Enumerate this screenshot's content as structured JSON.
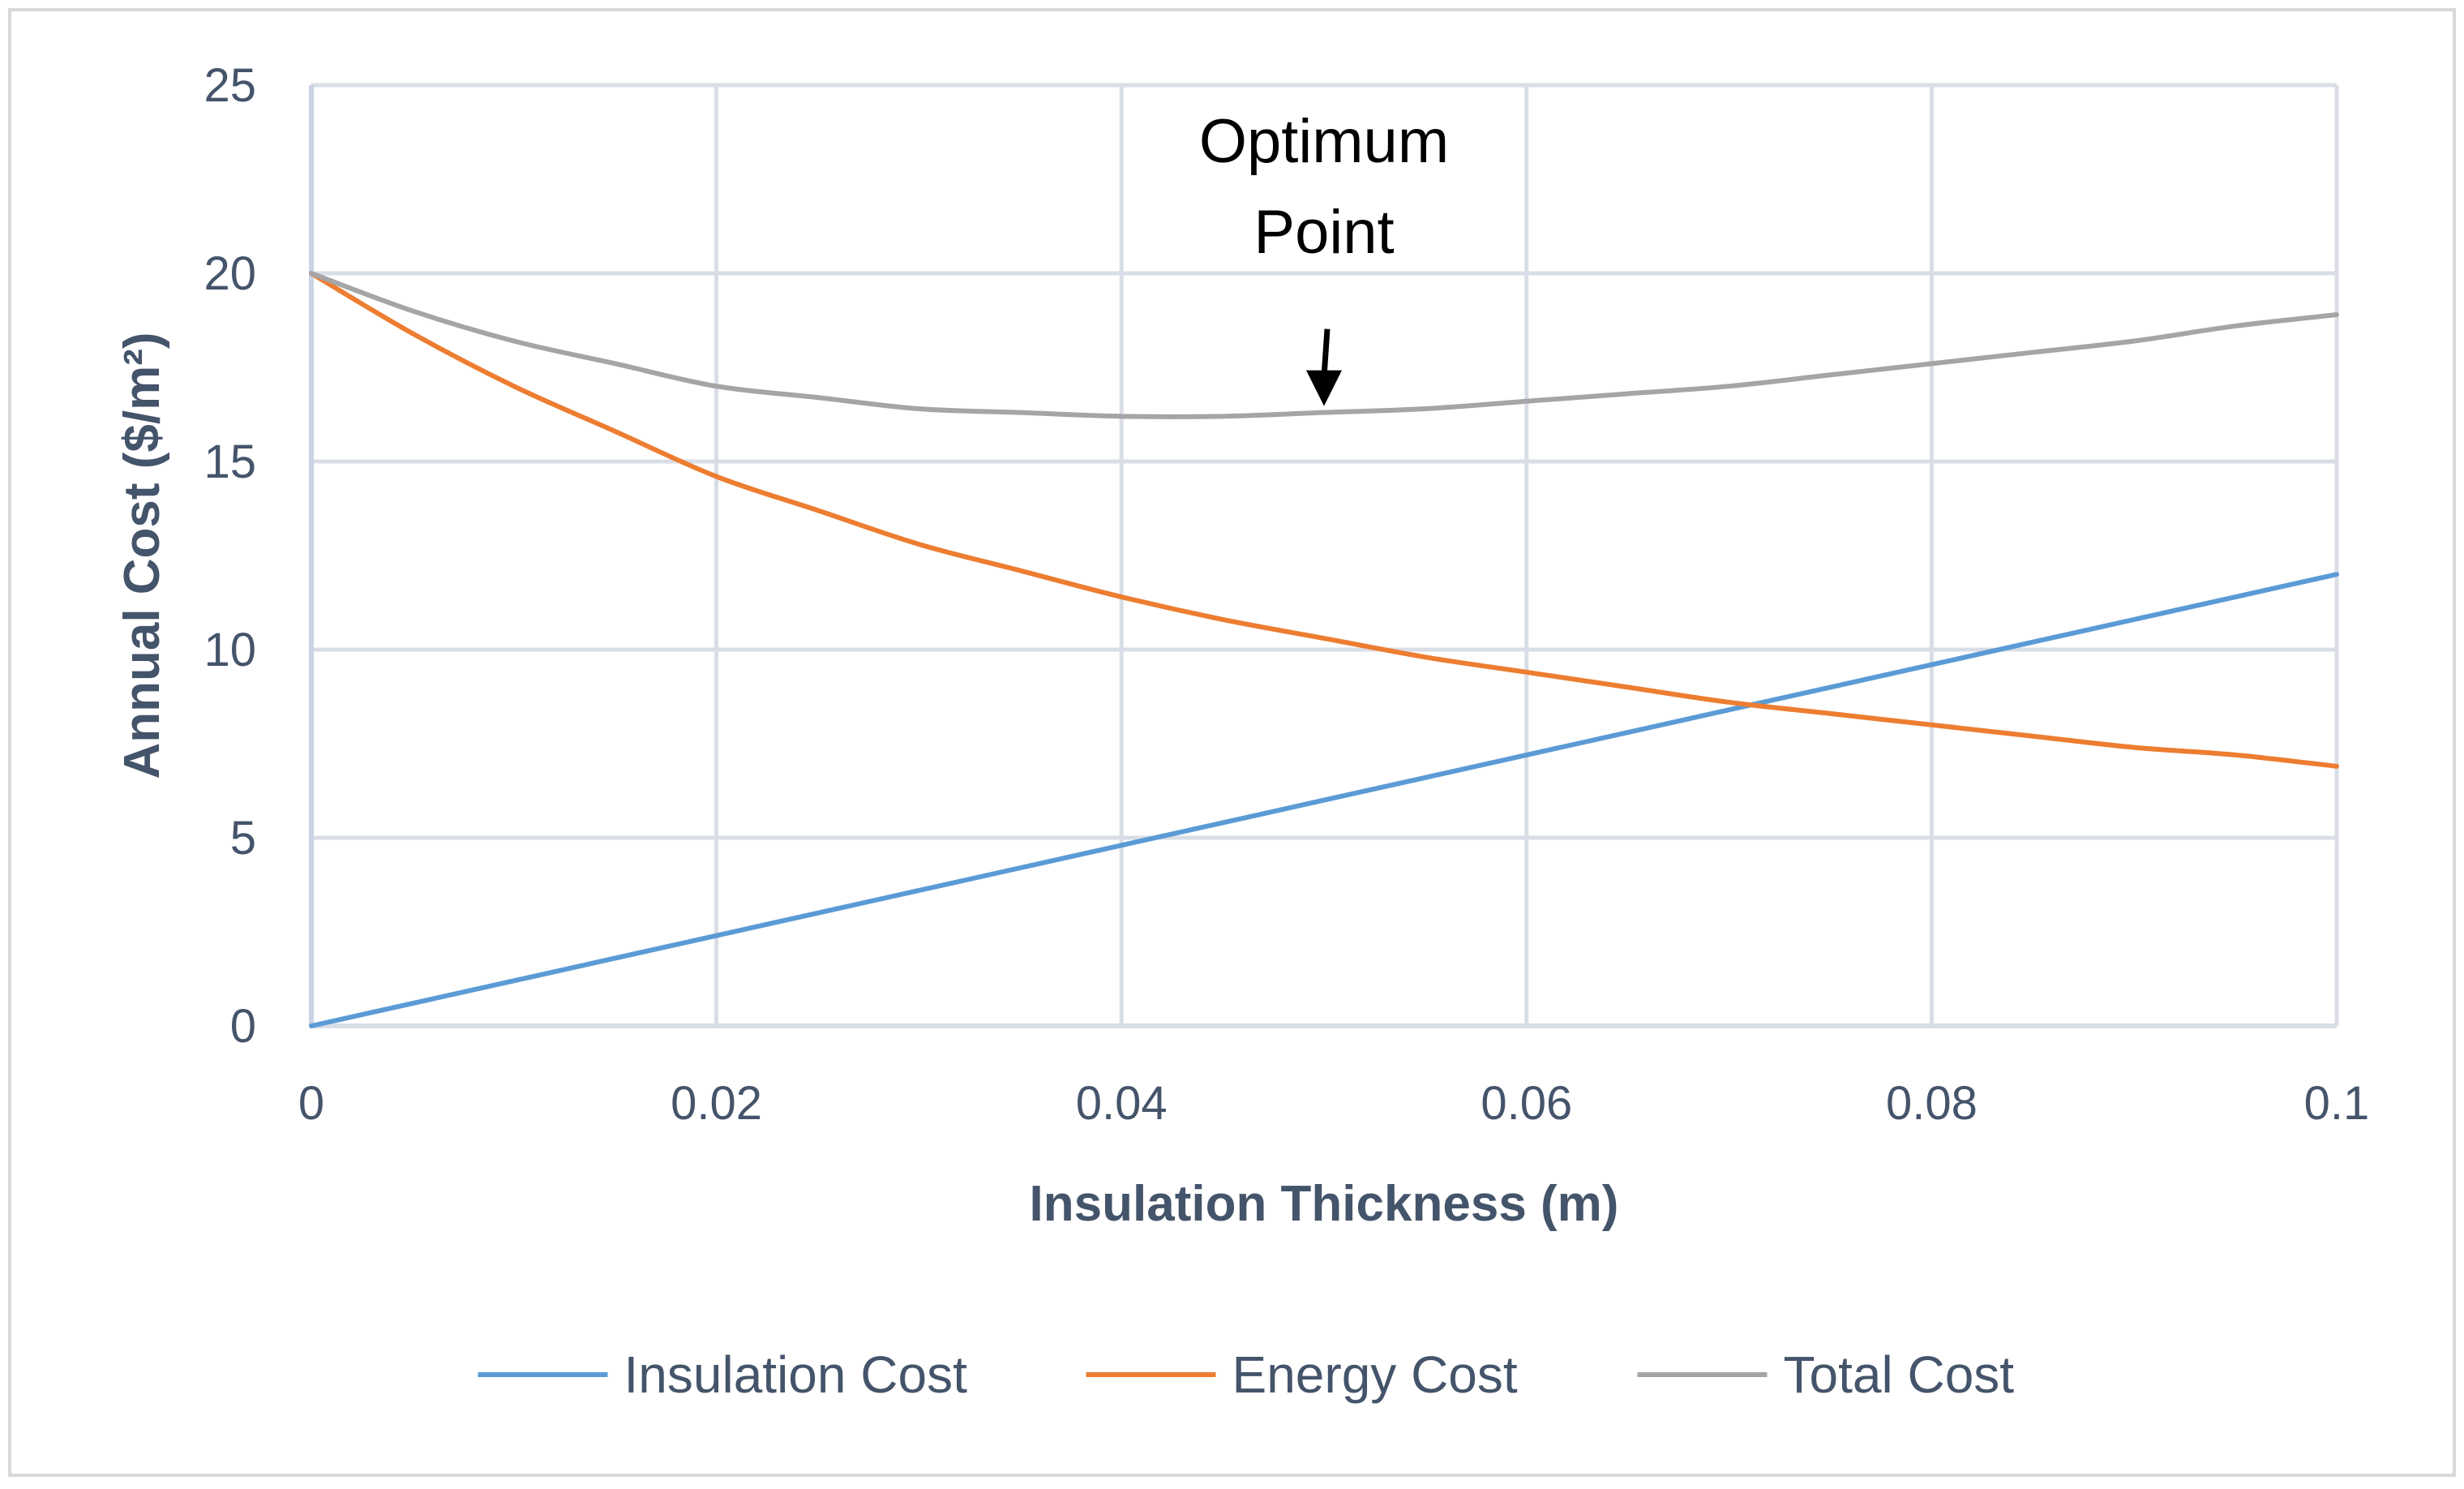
{
  "chart_data": {
    "type": "line",
    "title": "",
    "xlabel": "Insulation Thickness (m)",
    "ylabel": "Annual Cost ($/m²)",
    "xlim": [
      0,
      0.1
    ],
    "ylim": [
      0,
      25
    ],
    "x_ticks": [
      0,
      0.02,
      0.04,
      0.06,
      0.08,
      0.1
    ],
    "x_tick_labels": [
      "0",
      "0.02",
      "0.04",
      "0.06",
      "0.08",
      "0.1"
    ],
    "y_ticks": [
      0,
      5,
      10,
      15,
      20,
      25
    ],
    "y_tick_labels": [
      "0",
      "5",
      "10",
      "15",
      "20",
      "25"
    ],
    "grid": true,
    "legend_position": "bottom",
    "x": [
      0,
      0.005,
      0.01,
      0.015,
      0.02,
      0.025,
      0.03,
      0.035,
      0.04,
      0.045,
      0.05,
      0.055,
      0.06,
      0.065,
      0.07,
      0.075,
      0.08,
      0.085,
      0.09,
      0.095,
      0.1
    ],
    "series": [
      {
        "name": "Insulation Cost",
        "color": "#5b9bd5",
        "values": [
          0,
          0.6,
          1.2,
          1.8,
          2.4,
          3.0,
          3.6,
          4.2,
          4.8,
          5.4,
          6.0,
          6.6,
          7.2,
          7.8,
          8.4,
          9.0,
          9.6,
          10.2,
          10.8,
          11.4,
          12.0
        ]
      },
      {
        "name": "Energy Cost",
        "color": "#ed7d31",
        "values": [
          20.0,
          18.4,
          17.0,
          15.8,
          14.6,
          13.7,
          12.8,
          12.1,
          11.4,
          10.8,
          10.3,
          9.8,
          9.4,
          9.0,
          8.6,
          8.3,
          8.0,
          7.7,
          7.4,
          7.2,
          6.9
        ]
      },
      {
        "name": "Total Cost",
        "color": "#a5a5a5",
        "values": [
          20.0,
          19.0,
          18.2,
          17.6,
          17.0,
          16.7,
          16.4,
          16.3,
          16.2,
          16.2,
          16.3,
          16.4,
          16.6,
          16.8,
          17.0,
          17.3,
          17.6,
          17.9,
          18.2,
          18.6,
          18.9
        ]
      }
    ],
    "annotations": [
      {
        "lines": [
          "Optimum",
          "Point"
        ],
        "x": 0.05,
        "y": 16.3,
        "arrow": "down"
      }
    ]
  }
}
